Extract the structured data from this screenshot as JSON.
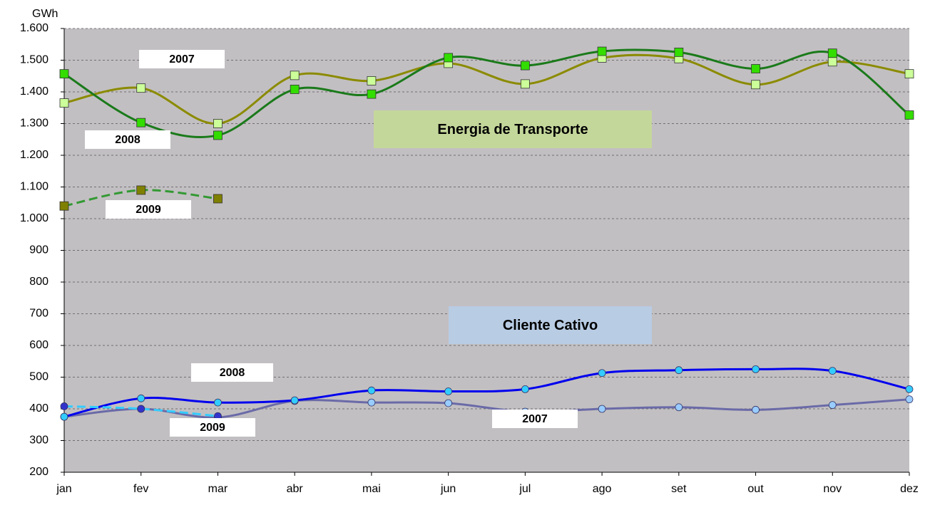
{
  "chart_data": {
    "type": "line",
    "y_label": "GWh",
    "categories": [
      "jan",
      "fev",
      "mar",
      "abr",
      "mai",
      "jun",
      "jul",
      "ago",
      "set",
      "out",
      "nov",
      "dez"
    ],
    "ylim": [
      200,
      1600
    ],
    "yticks": [
      200,
      300,
      400,
      500,
      600,
      700,
      800,
      900,
      {
        "value": 1000,
        "label": "1.000"
      },
      {
        "value": 1100,
        "label": "1.100"
      },
      {
        "value": 1200,
        "label": "1.200"
      },
      {
        "value": 1300,
        "label": "1.300"
      },
      {
        "value": 1400,
        "label": "1.400"
      },
      {
        "value": 1500,
        "label": "1.500"
      },
      {
        "value": 1600,
        "label": "1.600"
      }
    ],
    "grid": true,
    "series": [
      {
        "color": "#8b8b00",
        "marker_color": "#ccff99",
        "values": [
          1365,
          1412,
          1300,
          1452,
          1435,
          1490,
          1425,
          1507,
          1505,
          1423,
          1495,
          1457
        ]
      },
      {
        "color": "#1a7a1a",
        "marker_color": "#33dd00",
        "values": [
          1457,
          1303,
          1263,
          1408,
          1393,
          1508,
          1483,
          1528,
          1525,
          1473,
          1522,
          1327
        ]
      },
      {
        "color": "#339933",
        "marker_color": "#808000",
        "dashed": true,
        "values": [
          1040,
          1090,
          1063,
          null,
          null,
          null,
          null,
          null,
          null,
          null,
          null,
          null
        ]
      },
      {
        "color": "#6a6aa8",
        "marker_color": "#99ccff",
        "values": [
          375,
          400,
          373,
          425,
          420,
          418,
          391,
          400,
          405,
          397,
          412,
          430
        ]
      },
      {
        "color": "#0000ee",
        "marker_color": "#33ccff",
        "values": [
          375,
          433,
          420,
          427,
          458,
          455,
          462,
          513,
          522,
          525,
          520,
          462
        ]
      },
      {
        "color": "#33ccff",
        "marker_color": "#3333cc",
        "dashed": true,
        "values": [
          408,
          400,
          377,
          null,
          null,
          null,
          null,
          null,
          null,
          null,
          null,
          null
        ]
      }
    ],
    "annotations": [
      "2007",
      "2008",
      "2009",
      "Energia de Transporte",
      "Cliente Cativo",
      "2008",
      "2009",
      "2007"
    ]
  }
}
